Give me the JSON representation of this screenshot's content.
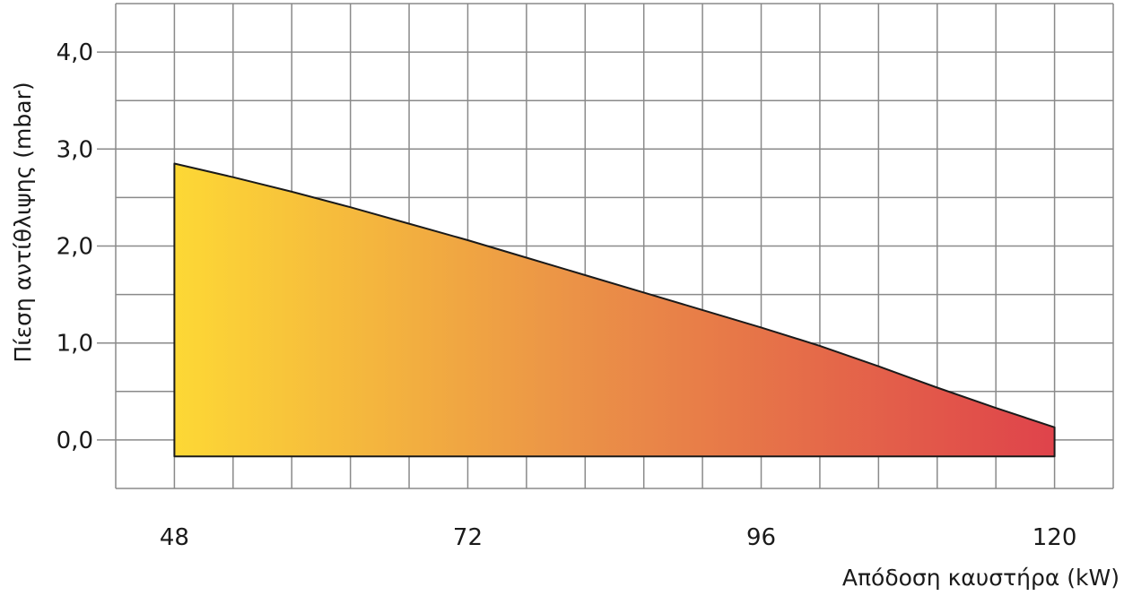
{
  "chart_data": {
    "type": "area",
    "title": "",
    "xlabel": "Απόδοση καυστήρα (kW)",
    "ylabel": "Πίεση αντίθλιψης (mbar)",
    "xlim": [
      43.2,
      124.8
    ],
    "ylim": [
      -0.5,
      4.5
    ],
    "xticks": [
      {
        "value": 48,
        "label": "48"
      },
      {
        "value": 72,
        "label": "72"
      },
      {
        "value": 96,
        "label": "96"
      },
      {
        "value": 120,
        "label": "120"
      }
    ],
    "yticks": [
      {
        "value": 0,
        "label": "0,0"
      },
      {
        "value": 1,
        "label": "1,0"
      },
      {
        "value": 2,
        "label": "2,0"
      },
      {
        "value": 3,
        "label": "3,0"
      },
      {
        "value": 4,
        "label": "4,0"
      }
    ],
    "x_grid_step": 4.8,
    "y_grid_step": 0.5,
    "grid": true,
    "baseline": -0.17,
    "series": [
      {
        "x": [
          48,
          52.8,
          57.6,
          62.4,
          67.2,
          72,
          76.8,
          81.6,
          86.4,
          91.2,
          96,
          100.8,
          105.6,
          110.4,
          115.2,
          120
        ],
        "y": [
          2.85,
          2.71,
          2.56,
          2.4,
          2.23,
          2.06,
          1.88,
          1.7,
          1.52,
          1.34,
          1.16,
          0.97,
          0.76,
          0.54,
          0.33,
          0.13
        ]
      }
    ],
    "colors": {
      "fill_start": "#fdd835",
      "fill_mid": "#eb9347",
      "fill_end": "#df434b",
      "grid": "#8a8a8a",
      "outline": "#1a1a1a"
    }
  }
}
